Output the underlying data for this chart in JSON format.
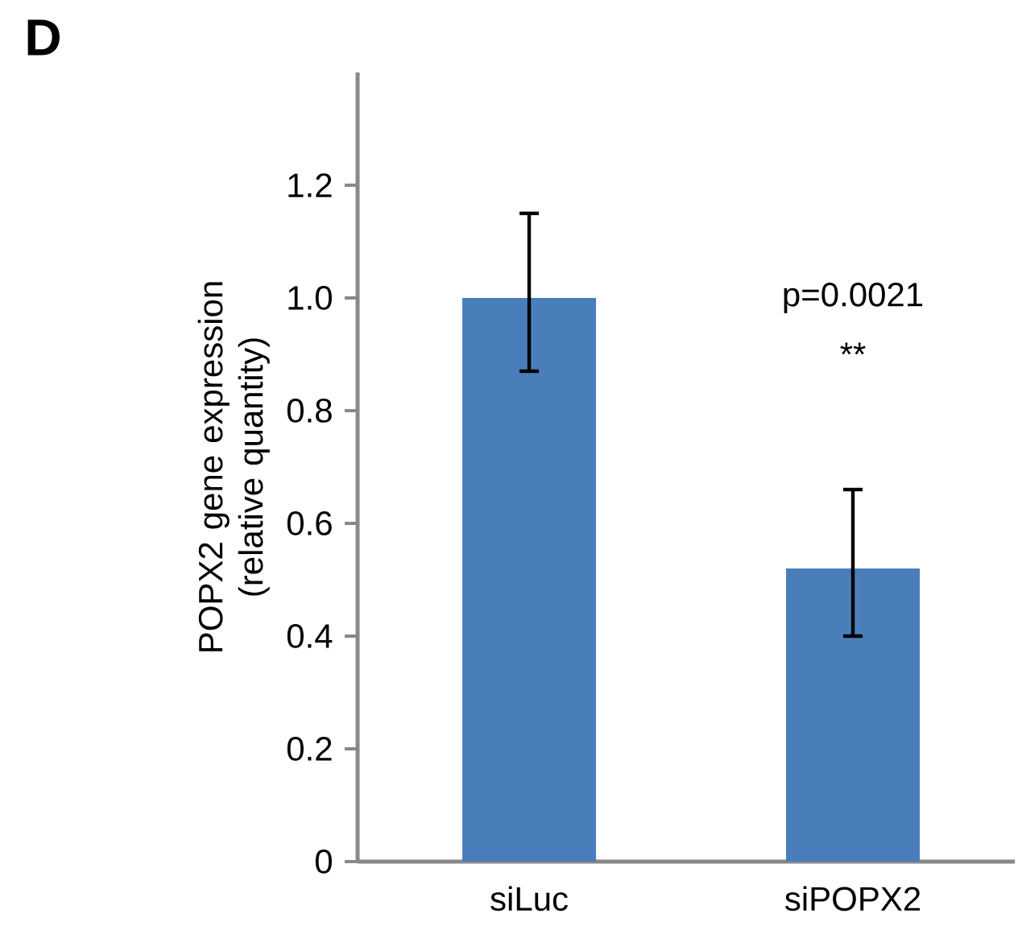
{
  "chart_data": {
    "type": "bar",
    "ylabel": "POPX2 gene expression (relative quantity)",
    "categories": [
      "siLuc",
      "siPOPX2"
    ],
    "values": [
      1.0,
      0.52
    ],
    "errors": [
      [
        0.87,
        1.15
      ],
      [
        0.4,
        0.66
      ]
    ],
    "color": "#4a7ebb",
    "ylim": [
      0,
      1.4
    ],
    "yticks": [
      0,
      0.2,
      0.4,
      0.6,
      0.8,
      {
        "value": 1.0,
        "label": "1.0"
      },
      1.2
    ],
    "grid": false,
    "annotations": [
      "D",
      "p=0.0021",
      "**"
    ]
  }
}
